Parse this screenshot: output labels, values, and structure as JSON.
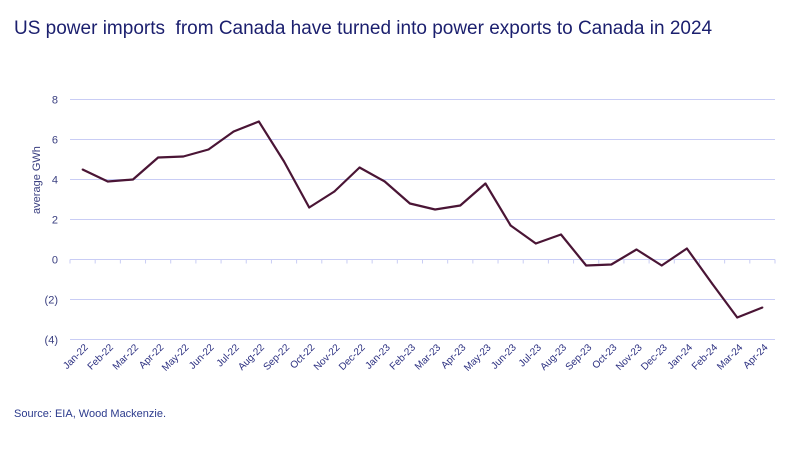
{
  "title": "US power imports  from Canada have turned into power exports to Canada in 2024",
  "source": "Source: EIA, Wood Mackenzie.",
  "colors": {
    "line": "#4a1535",
    "grid": "#c9cdf5",
    "text": "#1b1f6e",
    "negative_tick": "#e8504a"
  },
  "chart_data": {
    "type": "line",
    "title": "US power imports  from Canada have turned into power exports to Canada in 2024",
    "xlabel": "",
    "ylabel": "average GWh",
    "ylim": [
      -4,
      8
    ],
    "yticks": [
      8,
      6,
      4,
      2,
      0,
      -2,
      -4
    ],
    "ytick_labels": [
      "8",
      "6",
      "4",
      "2",
      "0",
      "(2)",
      "(4)"
    ],
    "grid": true,
    "categories": [
      "Jan-22",
      "Feb-22",
      "Mar-22",
      "Apr-22",
      "May-22",
      "Jun-22",
      "Jul-22",
      "Aug-22",
      "Sep-22",
      "Oct-22",
      "Nov-22",
      "Dec-22",
      "Jan-23",
      "Feb-23",
      "Mar-23",
      "Apr-23",
      "May-23",
      "Jun-23",
      "Jul-23",
      "Aug-23",
      "Sep-23",
      "Oct-23",
      "Nov-23",
      "Dec-23",
      "Jan-24",
      "Feb-24",
      "Mar-24",
      "Apr-24"
    ],
    "values": [
      4.5,
      3.9,
      4.0,
      5.1,
      5.15,
      5.5,
      6.4,
      6.9,
      4.9,
      2.6,
      3.4,
      4.6,
      3.9,
      2.8,
      2.5,
      2.7,
      3.8,
      1.7,
      0.8,
      1.25,
      -0.3,
      -0.25,
      0.5,
      -0.3,
      0.55,
      -1.2,
      -2.9,
      -2.4
    ]
  }
}
